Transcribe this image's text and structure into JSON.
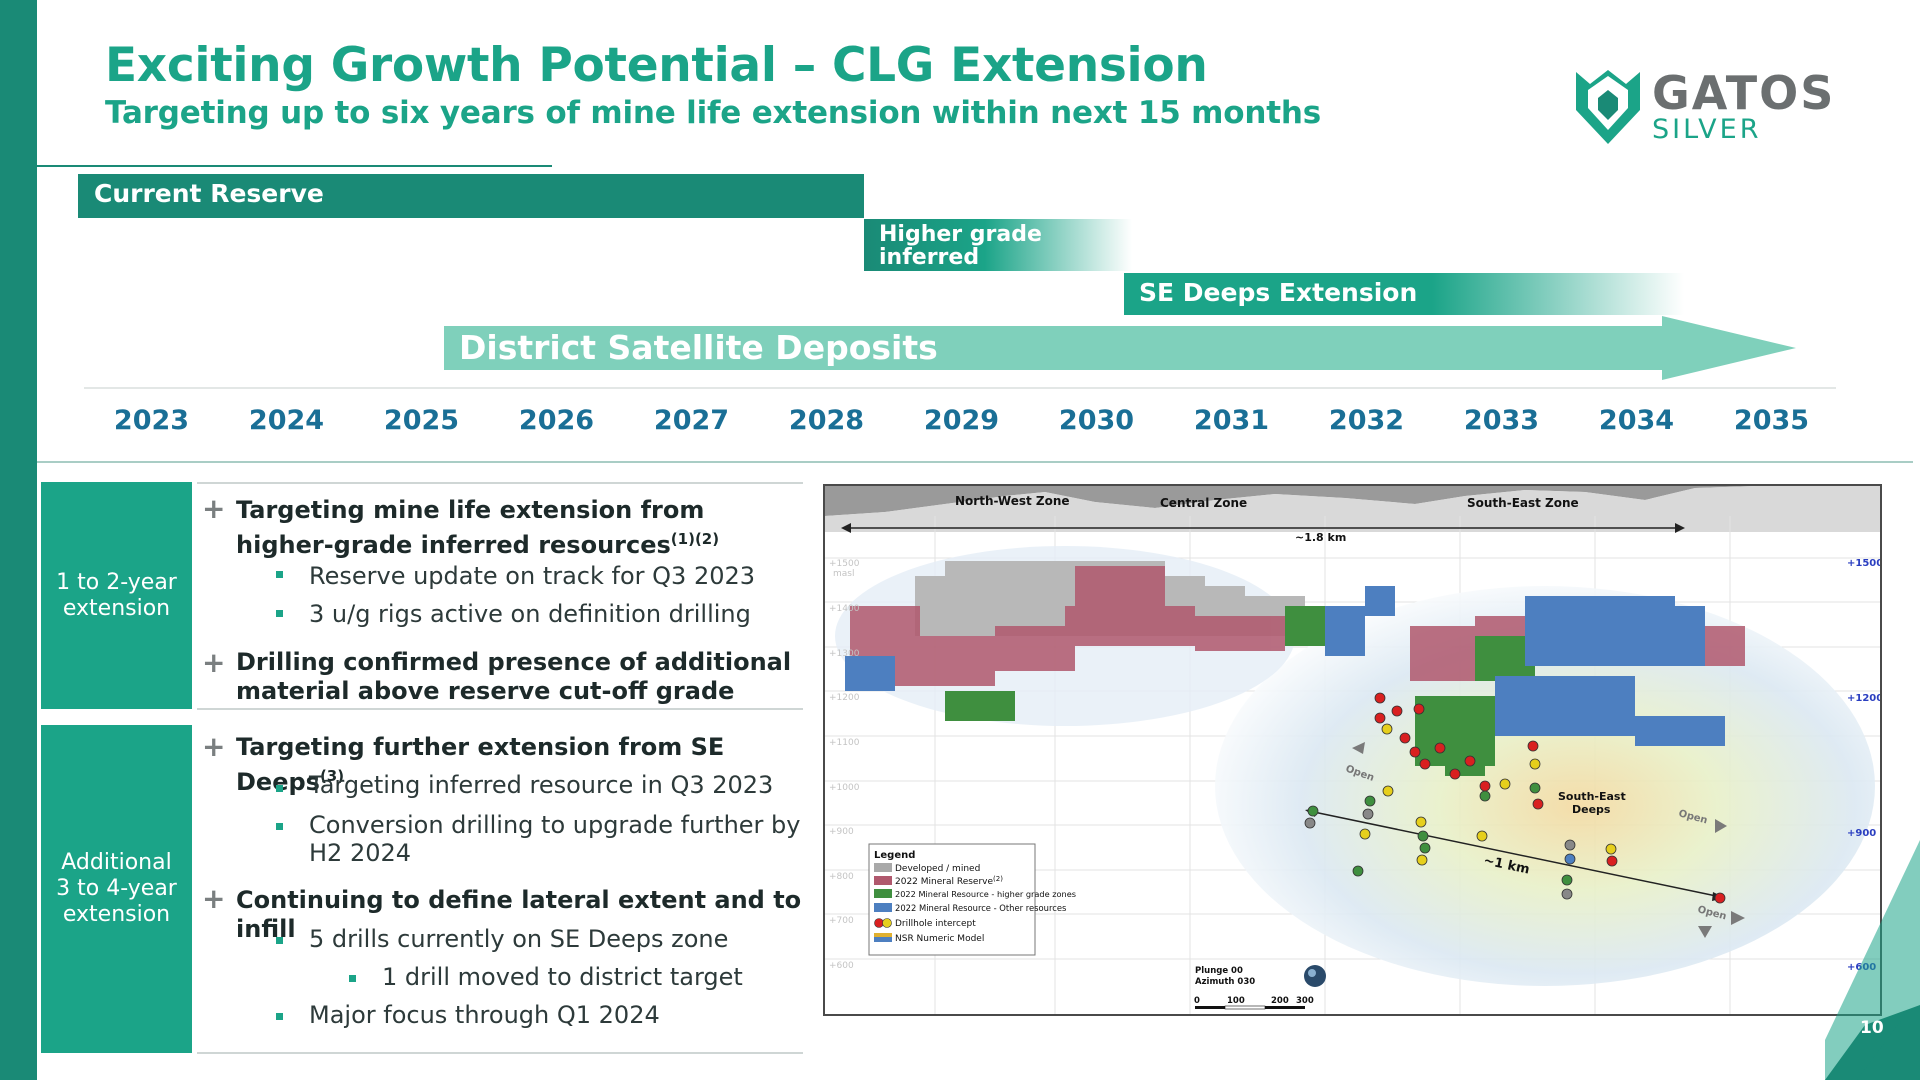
{
  "header": {
    "title": "Exciting Growth Potential – CLG Extension",
    "subtitle": "Targeting up to six years of mine life extension within next 15 months"
  },
  "logo": {
    "word1": "GATOS",
    "word2": "SILVER"
  },
  "timeline": {
    "bars": {
      "current_reserve": "Current Reserve",
      "higher_grade_line1": "Higher grade",
      "higher_grade_line2": "inferred",
      "se_deeps": "SE Deeps Extension",
      "district": "District Satellite Deposits"
    },
    "years": [
      "2023",
      "2024",
      "2025",
      "2026",
      "2027",
      "2028",
      "2029",
      "2030",
      "2031",
      "2032",
      "2033",
      "2034",
      "2035"
    ]
  },
  "section1": {
    "label_line1": "1 to 2-year",
    "label_line2": "extension",
    "bullet1": {
      "text": "Targeting mine life extension from higher-grade inferred resources",
      "sup": "(1)(2)"
    },
    "sub1": "Reserve update on track for Q3 2023",
    "sub2": "3 u/g rigs active on definition drilling",
    "bullet2": "Drilling confirmed presence of additional material above reserve cut-off grade"
  },
  "section2": {
    "label_line1": "Additional",
    "label_line2": "3 to 4-year",
    "label_line3": "extension",
    "bullet1": {
      "text": "Targeting further extension from SE Deeps",
      "sup": "(3)"
    },
    "sub1": "Targeting inferred resource in Q3 2023",
    "sub2": "Conversion drilling to upgrade further by H2 2024",
    "bullet2": "Continuing to define lateral extent and to infill",
    "sub3": "5 drills currently on SE Deeps zone",
    "subsub1": "1 drill moved to district target",
    "sub4": "Major focus through Q1 2024"
  },
  "map": {
    "zones": {
      "nw": "North-West Zone",
      "central": "Central Zone",
      "se": "South-East Zone"
    },
    "span_label": "~1.8 km",
    "se_deeps_label_1": "South-East",
    "se_deeps_label_2": "Deeps",
    "km_label": "~1 km",
    "open_label": "Open",
    "elev_right": [
      "+1500",
      "+1200",
      "+900",
      "+600"
    ],
    "elev_left": [
      "+1500",
      "masl",
      "+1400",
      "+1300",
      "+1200",
      "+1100",
      "+1000",
      "+900",
      "+800",
      "+700",
      "+600"
    ],
    "legend": {
      "title": "Legend",
      "items": [
        {
          "text": "Developed / mined",
          "color": "#a9a9a9"
        },
        {
          "text": "2022 Mineral Reserve",
          "sup": "(2)",
          "color": "#b0586d"
        },
        {
          "text": "2022 Mineral Resource - higher grade zones",
          "color": "#3f8f3f"
        },
        {
          "text": "2022 Mineral Resource - Other resources",
          "color": "#4d7fc0"
        },
        {
          "text": "Drillhole intercept",
          "color": "#d92020"
        },
        {
          "text": "NSR Numeric Model",
          "color": "#e0b030"
        }
      ]
    },
    "plunge": "Plunge 00",
    "azimuth": "Azimuth 030",
    "scale": [
      "0",
      "100",
      "200",
      "300"
    ]
  },
  "footer": {
    "page_number": "10"
  },
  "colors": {
    "accent": "#1ba488",
    "dark_accent": "#1a8a76",
    "light_accent": "#7fd0bb",
    "year_text": "#1a6f96"
  }
}
